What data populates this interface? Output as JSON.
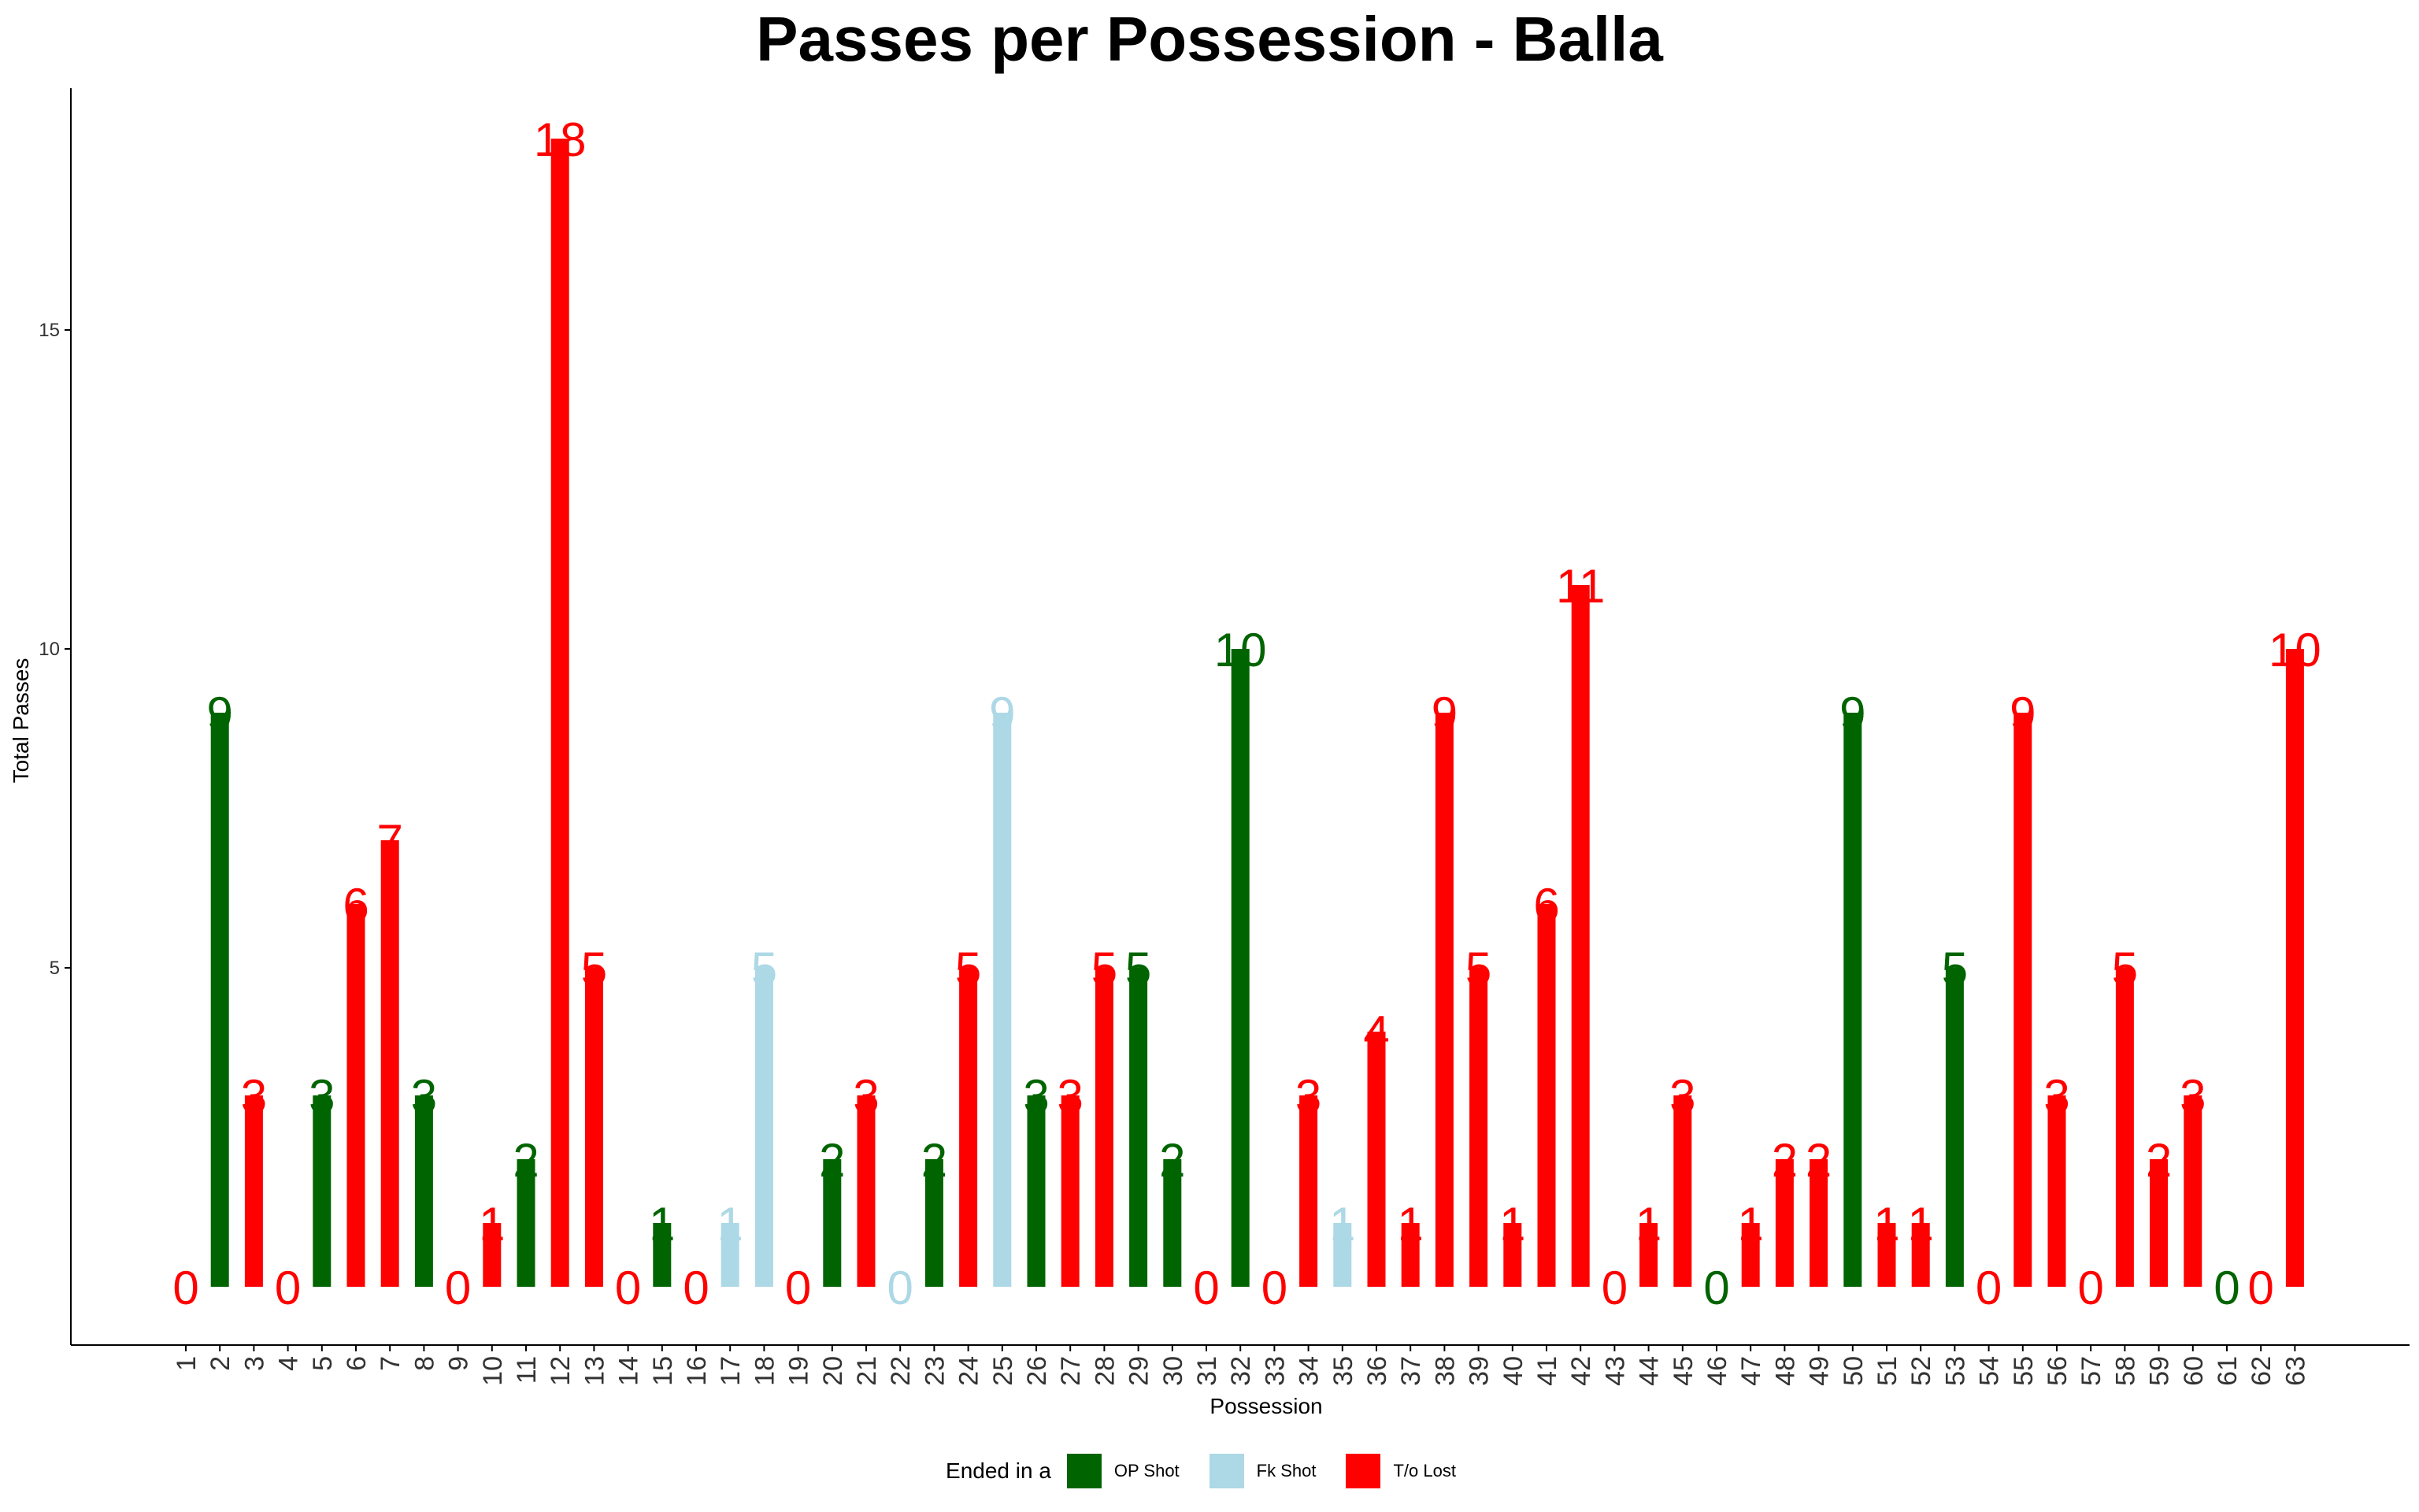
{
  "colors": {
    "op_shot": "#006400",
    "fk_shot": "#ADD8E6",
    "to_lost": "#FF0000",
    "axis": "#000000"
  },
  "legend": {
    "title": "Ended in a",
    "items": [
      {
        "key": "op_shot",
        "label": "OP Shot"
      },
      {
        "key": "fk_shot",
        "label": "Fk Shot"
      },
      {
        "key": "to_lost",
        "label": "T/o Lost"
      }
    ]
  },
  "chart_data": {
    "type": "bar",
    "title": "Passes per Possession - Balla",
    "xlabel": "Possession",
    "ylabel": "Total Passes",
    "ylim": [
      0,
      18
    ],
    "yticks": [
      5,
      10,
      15
    ],
    "grid": false,
    "legend_position": "bottom",
    "categories": [
      "1",
      "2",
      "3",
      "4",
      "5",
      "6",
      "7",
      "8",
      "9",
      "10",
      "11",
      "12",
      "13",
      "14",
      "15",
      "16",
      "17",
      "18",
      "19",
      "20",
      "21",
      "22",
      "23",
      "24",
      "25",
      "26",
      "27",
      "28",
      "29",
      "30",
      "31",
      "32",
      "33",
      "34",
      "35",
      "36",
      "37",
      "38",
      "39",
      "40",
      "41",
      "42",
      "43",
      "44",
      "45",
      "46",
      "47",
      "48",
      "49",
      "50",
      "51",
      "52",
      "53",
      "54",
      "55",
      "56",
      "57",
      "58",
      "59",
      "60",
      "61",
      "62",
      "63"
    ],
    "values": [
      0,
      9,
      3,
      0,
      3,
      6,
      7,
      3,
      0,
      1,
      2,
      18,
      5,
      0,
      1,
      0,
      1,
      5,
      0,
      2,
      3,
      0,
      2,
      5,
      9,
      3,
      3,
      5,
      5,
      2,
      0,
      10,
      0,
      3,
      1,
      4,
      1,
      9,
      5,
      1,
      6,
      11,
      0,
      1,
      3,
      0,
      1,
      2,
      2,
      9,
      1,
      1,
      5,
      0,
      9,
      3,
      0,
      5,
      2,
      3,
      0,
      0,
      10
    ],
    "outcome": [
      "to_lost",
      "op_shot",
      "to_lost",
      "to_lost",
      "op_shot",
      "to_lost",
      "to_lost",
      "op_shot",
      "to_lost",
      "to_lost",
      "op_shot",
      "to_lost",
      "to_lost",
      "to_lost",
      "op_shot",
      "to_lost",
      "fk_shot",
      "fk_shot",
      "to_lost",
      "op_shot",
      "to_lost",
      "fk_shot",
      "op_shot",
      "to_lost",
      "fk_shot",
      "op_shot",
      "to_lost",
      "to_lost",
      "op_shot",
      "op_shot",
      "to_lost",
      "op_shot",
      "to_lost",
      "to_lost",
      "fk_shot",
      "to_lost",
      "to_lost",
      "to_lost",
      "to_lost",
      "to_lost",
      "to_lost",
      "to_lost",
      "to_lost",
      "to_lost",
      "to_lost",
      "op_shot",
      "to_lost",
      "to_lost",
      "to_lost",
      "op_shot",
      "to_lost",
      "to_lost",
      "op_shot",
      "to_lost",
      "to_lost",
      "to_lost",
      "to_lost",
      "to_lost",
      "to_lost",
      "to_lost",
      "op_shot",
      "to_lost",
      "to_lost"
    ]
  }
}
